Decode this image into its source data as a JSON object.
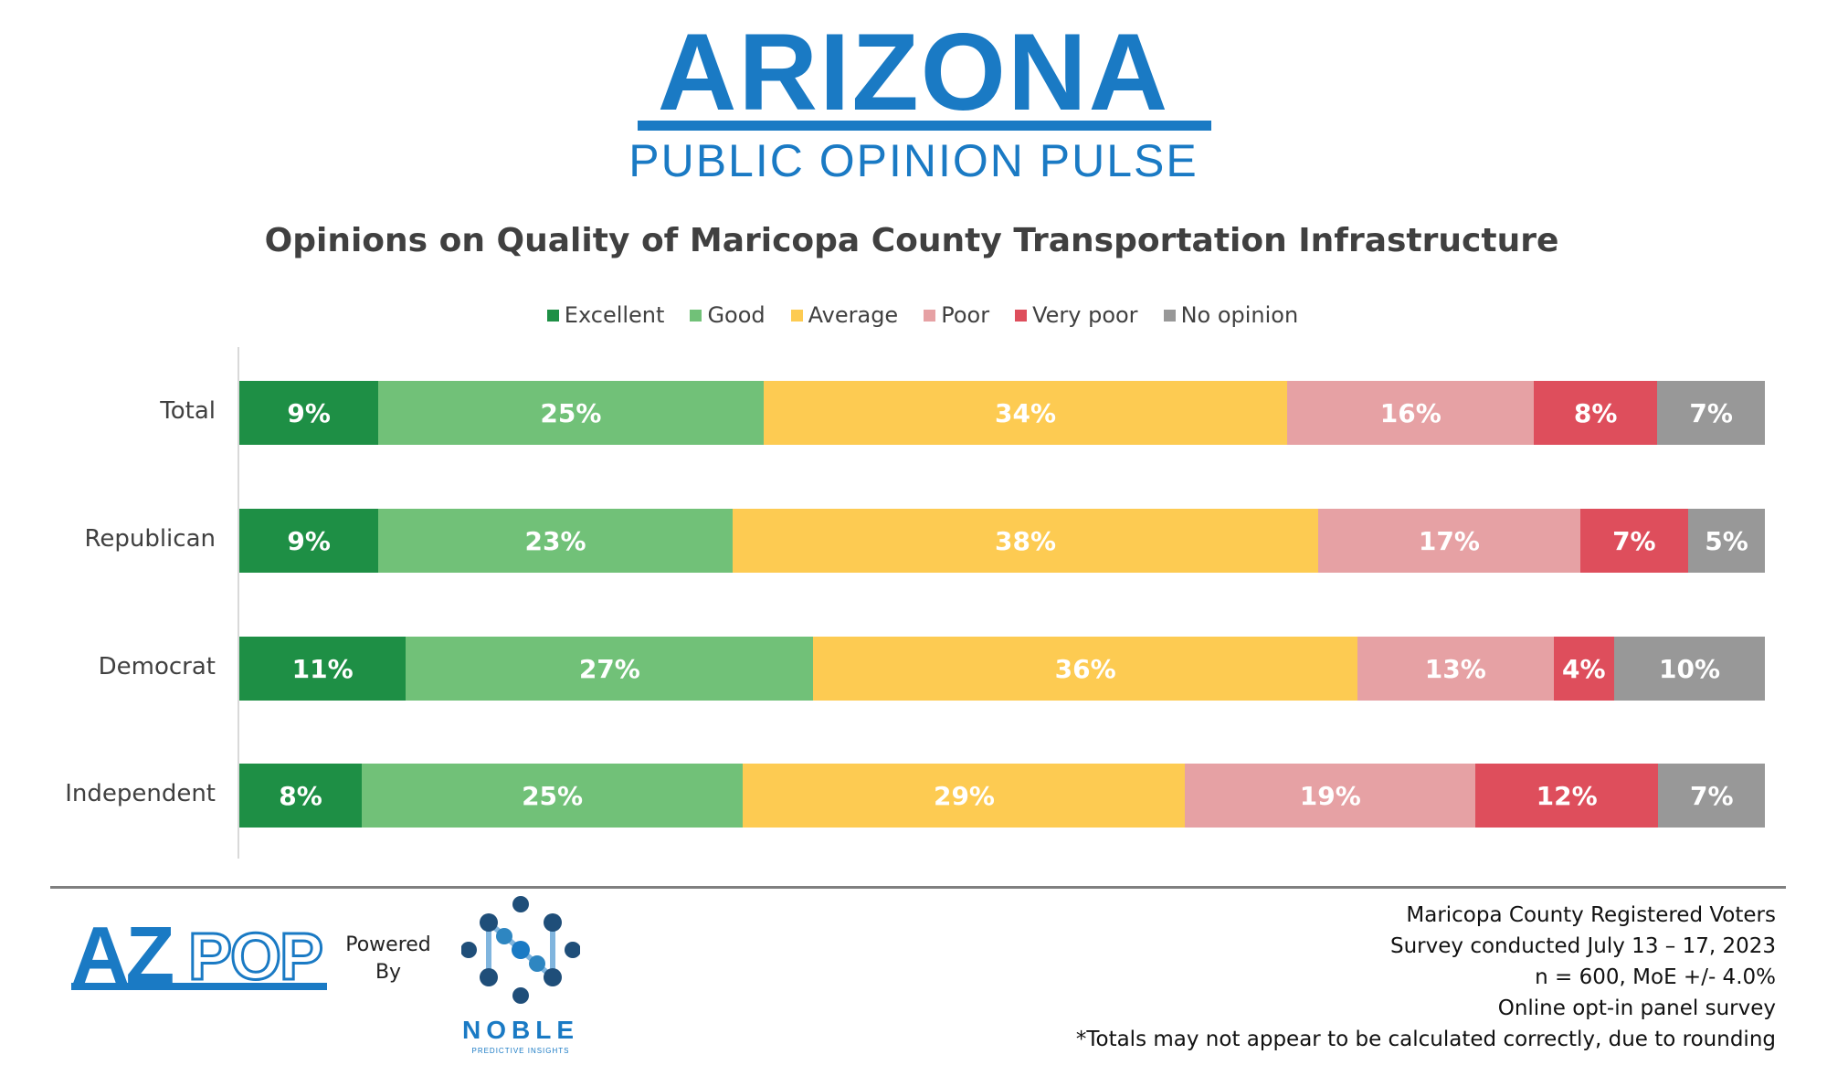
{
  "header": {
    "title": "ARIZONA",
    "subtitle": "PUBLIC OPINION PULSE"
  },
  "colors": {
    "brand": "#1a7ac4"
  },
  "chart_data": {
    "type": "bar",
    "orientation": "horizontal",
    "stacked": true,
    "title": "Opinions on Quality of Maricopa County Transportation Infrastructure",
    "categories": [
      "Total",
      "Republican",
      "Democrat",
      "Independent"
    ],
    "series": [
      {
        "name": "Excellent",
        "color": "#1e8f45",
        "values": [
          9,
          9,
          11,
          8
        ],
        "labels": [
          "9%",
          "9%",
          "11%",
          "8%"
        ]
      },
      {
        "name": "Good",
        "color": "#71c178",
        "values": [
          25,
          23,
          27,
          25
        ],
        "labels": [
          "25%",
          "23%",
          "27%",
          "25%"
        ]
      },
      {
        "name": "Average",
        "color": "#fdcb52",
        "values": [
          34,
          38,
          36,
          29
        ],
        "labels": [
          "34%",
          "38%",
          "36%",
          "29%"
        ]
      },
      {
        "name": "Poor",
        "color": "#e6a1a4",
        "values": [
          16,
          17,
          13,
          19
        ],
        "labels": [
          "16%",
          "17%",
          "13%",
          "19%"
        ]
      },
      {
        "name": "Very poor",
        "color": "#de4e5c",
        "values": [
          8,
          7,
          4,
          12
        ],
        "labels": [
          "8%",
          "7%",
          "4%",
          "12%"
        ]
      },
      {
        "name": "No opinion",
        "color": "#989898",
        "values": [
          7,
          5,
          10,
          7
        ],
        "labels": [
          "7%",
          "5%",
          "10%",
          "7%"
        ]
      }
    ],
    "legend_position": "top",
    "xlim": [
      0,
      100
    ]
  },
  "footer": {
    "azpop_az": "AZ",
    "azpop_pop": "POP",
    "powered_line1": "Powered",
    "powered_line2": "By",
    "noble_word": "NOBLE",
    "noble_tagline": "PREDICTIVE INSIGHTS",
    "notes": [
      "Maricopa County Registered Voters",
      "Survey conducted July 13 – 17, 2023",
      "n = 600, MoE +/- 4.0%",
      "Online opt-in panel survey",
      "*Totals may not appear to be calculated correctly, due to rounding"
    ]
  }
}
